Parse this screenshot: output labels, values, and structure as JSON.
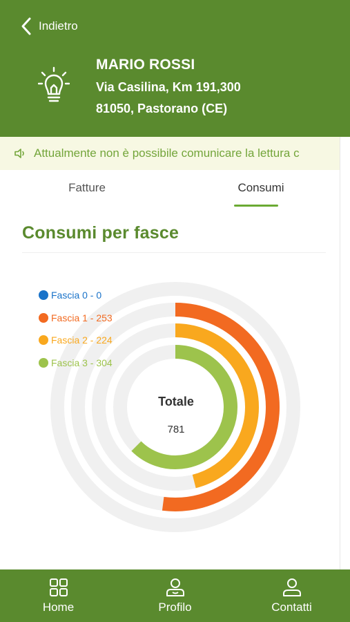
{
  "header": {
    "back_label": "Indietro",
    "customer_name": "MARIO ROSSI",
    "address_line1": "Via Casilina, Km 191,300",
    "address_line2": "81050, Pastorano (CE)"
  },
  "notice": {
    "text": "Attualmente non è possibile comunicare la lettura c"
  },
  "tabs": [
    {
      "label": "Fatture",
      "active": false
    },
    {
      "label": "Consumi",
      "active": true
    }
  ],
  "section": {
    "title": "Consumi per fasce"
  },
  "chart_data": {
    "type": "radial-bar",
    "series": [
      {
        "name": "Fascia 0",
        "value": 0,
        "legend": "Fascia 0 - 0",
        "color": "#1a73c9"
      },
      {
        "name": "Fascia 1",
        "value": 253,
        "legend": "Fascia 1 - 253",
        "color": "#f26a21"
      },
      {
        "name": "Fascia 2",
        "value": 224,
        "legend": "Fascia 2 - 224",
        "color": "#f9a81e"
      },
      {
        "name": "Fascia 3",
        "value": 304,
        "legend": "Fascia 3 - 304",
        "color": "#9dc34c"
      }
    ],
    "total_label": "Totale",
    "total_value": "781",
    "track_color": "#f0f0f0"
  },
  "bottom_nav": [
    {
      "label": "Home",
      "icon": "grid-icon"
    },
    {
      "label": "Profilo",
      "icon": "profile-icon"
    },
    {
      "label": "Contatti",
      "icon": "person-icon"
    }
  ],
  "colors": {
    "brand_green": "#5a8a2e",
    "notice_bg": "#f7f8e3",
    "notice_text": "#73a53a"
  }
}
